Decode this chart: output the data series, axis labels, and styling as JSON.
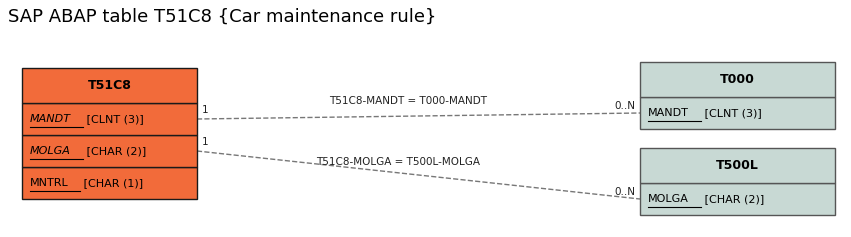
{
  "title": "SAP ABAP table T51C8 {Car maintenance rule}",
  "title_fontsize": 13,
  "background_color": "#ffffff",
  "main_table": {
    "name": "T51C8",
    "header_color": "#f26b3a",
    "row_color": "#f26b3a",
    "border_color": "#1a1a1a",
    "header_text": "T51C8",
    "rows": [
      {
        "label": "MANDT",
        "italic": true,
        "underline": true,
        "suffix": " [CLNT (3)]"
      },
      {
        "label": "MOLGA",
        "italic": true,
        "underline": true,
        "suffix": " [CHAR (2)]"
      },
      {
        "label": "MNTRL",
        "italic": false,
        "underline": true,
        "suffix": " [CHAR (1)]"
      }
    ]
  },
  "ref_tables": [
    {
      "name": "T000",
      "header_color": "#c8d9d4",
      "row_color": "#c8d9d4",
      "border_color": "#555555",
      "header_text": "T000",
      "rows": [
        {
          "label": "MANDT",
          "italic": false,
          "underline": true,
          "suffix": " [CLNT (3)]"
        }
      ]
    },
    {
      "name": "T500L",
      "header_color": "#c8d9d4",
      "row_color": "#c8d9d4",
      "border_color": "#555555",
      "header_text": "T500L",
      "rows": [
        {
          "label": "MOLGA",
          "italic": false,
          "underline": true,
          "suffix": " [CHAR (2)]"
        }
      ]
    }
  ],
  "relations": [
    {
      "label": "T51C8-MANDT = T000-MANDT",
      "cardinality_from": "1",
      "cardinality_to": "0..N"
    },
    {
      "label": "T51C8-MOLGA = T500L-MOLGA",
      "cardinality_from": "1",
      "cardinality_to": "0..N"
    }
  ]
}
